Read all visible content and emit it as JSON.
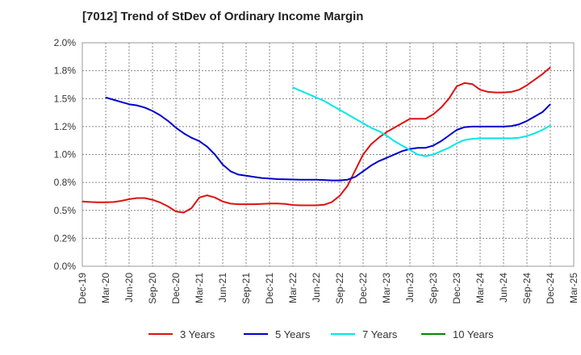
{
  "chart_data": {
    "type": "line",
    "title": "[7012]  Trend of StDev of Ordinary Income Margin",
    "xlabel": "",
    "ylabel": "",
    "ylim": [
      0.0,
      2.0
    ],
    "y_ticks": [
      "0.0%",
      "0.2%",
      "0.5%",
      "0.8%",
      "1.0%",
      "1.2%",
      "1.5%",
      "1.8%",
      "2.0%"
    ],
    "x_ticks": [
      "Dec-19",
      "Mar-20",
      "Jun-20",
      "Sep-20",
      "Dec-20",
      "Mar-21",
      "Jun-21",
      "Sep-21",
      "Dec-21",
      "Mar-22",
      "Jun-22",
      "Sep-22",
      "Dec-22",
      "Mar-23",
      "Jun-23",
      "Sep-23",
      "Dec-23",
      "Mar-24",
      "Jun-24",
      "Sep-24",
      "Dec-24",
      "Mar-25"
    ],
    "grid": true,
    "legend_position": "bottom",
    "series": [
      {
        "name": "3 Years",
        "color": "#dd1111",
        "x": [
          "2019-12",
          "2020-01",
          "2020-02",
          "2020-03",
          "2020-04",
          "2020-05",
          "2020-06",
          "2020-07",
          "2020-08",
          "2020-09",
          "2020-10",
          "2020-11",
          "2020-12",
          "2021-01",
          "2021-02",
          "2021-03",
          "2021-04",
          "2021-05",
          "2021-06",
          "2021-07",
          "2021-08",
          "2021-09",
          "2021-10",
          "2021-11",
          "2021-12",
          "2022-01",
          "2022-02",
          "2022-03",
          "2022-04",
          "2022-05",
          "2022-06",
          "2022-07",
          "2022-08",
          "2022-09",
          "2022-10",
          "2022-11",
          "2022-12",
          "2023-01",
          "2023-02",
          "2023-03",
          "2023-04",
          "2023-05",
          "2023-06",
          "2023-07",
          "2023-08",
          "2023-09",
          "2023-10",
          "2023-11",
          "2023-12",
          "2024-01",
          "2024-02",
          "2024-03",
          "2024-04",
          "2024-05",
          "2024-06",
          "2024-07",
          "2024-08",
          "2024-09",
          "2024-10",
          "2024-11",
          "2024-12"
        ],
        "values": [
          0.58,
          0.575,
          0.572,
          0.572,
          0.575,
          0.585,
          0.6,
          0.61,
          0.61,
          0.595,
          0.57,
          0.535,
          0.49,
          0.48,
          0.52,
          0.615,
          0.635,
          0.615,
          0.58,
          0.56,
          0.555,
          0.555,
          0.555,
          0.558,
          0.562,
          0.562,
          0.558,
          0.548,
          0.545,
          0.545,
          0.545,
          0.55,
          0.575,
          0.63,
          0.72,
          0.86,
          1.0,
          1.09,
          1.15,
          1.2,
          1.24,
          1.28,
          1.32,
          1.32,
          1.32,
          1.36,
          1.42,
          1.5,
          1.61,
          1.64,
          1.63,
          1.58,
          1.56,
          1.555,
          1.555,
          1.56,
          1.58,
          1.62,
          1.67,
          1.72,
          1.78
        ]
      },
      {
        "name": "5 Years",
        "color": "#0000cc",
        "x": [
          "2020-03",
          "2020-04",
          "2020-05",
          "2020-06",
          "2020-07",
          "2020-08",
          "2020-09",
          "2020-10",
          "2020-11",
          "2020-12",
          "2021-01",
          "2021-02",
          "2021-03",
          "2021-04",
          "2021-05",
          "2021-06",
          "2021-07",
          "2021-08",
          "2021-09",
          "2021-10",
          "2021-11",
          "2021-12",
          "2022-01",
          "2022-02",
          "2022-03",
          "2022-04",
          "2022-05",
          "2022-06",
          "2022-07",
          "2022-08",
          "2022-09",
          "2022-10",
          "2022-11",
          "2022-12",
          "2023-01",
          "2023-02",
          "2023-03",
          "2023-04",
          "2023-05",
          "2023-06",
          "2023-07",
          "2023-08",
          "2023-09",
          "2023-10",
          "2023-11",
          "2023-12",
          "2024-01",
          "2024-02",
          "2024-03",
          "2024-04",
          "2024-05",
          "2024-06",
          "2024-07",
          "2024-08",
          "2024-09",
          "2024-10",
          "2024-11",
          "2024-12"
        ],
        "values": [
          1.51,
          1.49,
          1.47,
          1.45,
          1.44,
          1.42,
          1.39,
          1.35,
          1.3,
          1.24,
          1.19,
          1.15,
          1.12,
          1.07,
          1.0,
          0.91,
          0.85,
          0.82,
          0.81,
          0.8,
          0.79,
          0.785,
          0.78,
          0.778,
          0.776,
          0.775,
          0.775,
          0.775,
          0.772,
          0.768,
          0.768,
          0.775,
          0.8,
          0.85,
          0.9,
          0.94,
          0.97,
          1.0,
          1.03,
          1.05,
          1.06,
          1.06,
          1.08,
          1.12,
          1.17,
          1.22,
          1.245,
          1.25,
          1.25,
          1.25,
          1.25,
          1.25,
          1.255,
          1.27,
          1.3,
          1.34,
          1.38,
          1.45
        ]
      },
      {
        "name": "7 Years",
        "color": "#00e8e8",
        "x": [
          "2022-03",
          "2022-04",
          "2022-05",
          "2022-06",
          "2022-07",
          "2022-08",
          "2022-09",
          "2022-10",
          "2022-11",
          "2022-12",
          "2023-01",
          "2023-02",
          "2023-03",
          "2023-04",
          "2023-05",
          "2023-06",
          "2023-07",
          "2023-08",
          "2023-09",
          "2023-10",
          "2023-11",
          "2023-12",
          "2024-01",
          "2024-02",
          "2024-03",
          "2024-04",
          "2024-05",
          "2024-06",
          "2024-07",
          "2024-08",
          "2024-09",
          "2024-10",
          "2024-11",
          "2024-12"
        ],
        "values": [
          1.6,
          1.57,
          1.54,
          1.51,
          1.48,
          1.44,
          1.4,
          1.36,
          1.32,
          1.28,
          1.24,
          1.21,
          1.17,
          1.12,
          1.08,
          1.04,
          1.0,
          0.985,
          1.0,
          1.03,
          1.06,
          1.1,
          1.13,
          1.14,
          1.145,
          1.145,
          1.145,
          1.145,
          1.145,
          1.15,
          1.165,
          1.19,
          1.22,
          1.26
        ]
      },
      {
        "name": "10 Years",
        "color": "#008800",
        "x": [],
        "values": []
      }
    ]
  }
}
